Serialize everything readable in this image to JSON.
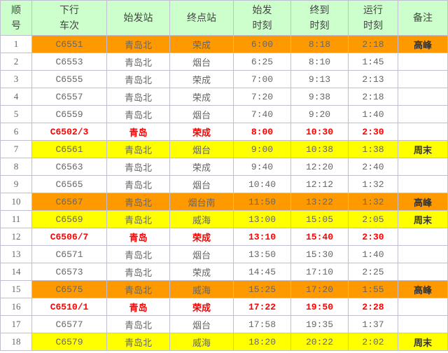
{
  "colors": {
    "header": "#ccffcc",
    "peak": "#ff9900",
    "weekend": "#ffff00",
    "special_text": "#ff0000"
  },
  "headers": [
    "顺\n号",
    "下行\n车次",
    "始发站",
    "终点站",
    "始发\n时刻",
    "终到\n时刻",
    "运行\n时刻",
    "备注"
  ],
  "rows": [
    {
      "type": "peak",
      "cells": [
        "1",
        "C6551",
        "青岛北",
        "荣成",
        "6:00",
        "8:18",
        "2:18",
        "高峰"
      ]
    },
    {
      "type": "normal",
      "cells": [
        "2",
        "C6553",
        "青岛北",
        "烟台",
        "6:25",
        "8:10",
        "1:45",
        ""
      ]
    },
    {
      "type": "normal",
      "cells": [
        "3",
        "C6555",
        "青岛北",
        "荣成",
        "7:00",
        "9:13",
        "2:13",
        ""
      ]
    },
    {
      "type": "normal",
      "cells": [
        "4",
        "C6557",
        "青岛北",
        "荣成",
        "7:20",
        "9:38",
        "2:18",
        ""
      ]
    },
    {
      "type": "normal",
      "cells": [
        "5",
        "C6559",
        "青岛北",
        "烟台",
        "7:40",
        "9:20",
        "1:40",
        ""
      ]
    },
    {
      "type": "red",
      "cells": [
        "6",
        "C6502/3",
        "青岛",
        "荣成",
        "8:00",
        "10:30",
        "2:30",
        ""
      ]
    },
    {
      "type": "weekend",
      "cells": [
        "7",
        "C6561",
        "青岛北",
        "烟台",
        "9:00",
        "10:38",
        "1:38",
        "周末"
      ]
    },
    {
      "type": "normal",
      "cells": [
        "8",
        "C6563",
        "青岛北",
        "荣成",
        "9:40",
        "12:20",
        "2:40",
        ""
      ]
    },
    {
      "type": "normal",
      "cells": [
        "9",
        "C6565",
        "青岛北",
        "烟台",
        "10:40",
        "12:12",
        "1:32",
        ""
      ]
    },
    {
      "type": "peak",
      "cells": [
        "10",
        "C6567",
        "青岛北",
        "烟台南",
        "11:50",
        "13:22",
        "1:32",
        "高峰"
      ]
    },
    {
      "type": "weekend",
      "cells": [
        "11",
        "C6569",
        "青岛北",
        "威海",
        "13:00",
        "15:05",
        "2:05",
        "周末"
      ]
    },
    {
      "type": "red",
      "cells": [
        "12",
        "C6506/7",
        "青岛",
        "荣成",
        "13:10",
        "15:40",
        "2:30",
        ""
      ]
    },
    {
      "type": "normal",
      "cells": [
        "13",
        "C6571",
        "青岛北",
        "烟台",
        "13:50",
        "15:30",
        "1:40",
        ""
      ]
    },
    {
      "type": "normal",
      "cells": [
        "14",
        "C6573",
        "青岛北",
        "荣成",
        "14:45",
        "17:10",
        "2:25",
        ""
      ]
    },
    {
      "type": "peak",
      "cells": [
        "15",
        "C6575",
        "青岛北",
        "威海",
        "15:25",
        "17:20",
        "1:55",
        "高峰"
      ]
    },
    {
      "type": "red",
      "cells": [
        "16",
        "C6510/1",
        "青岛",
        "荣成",
        "17:22",
        "19:50",
        "2:28",
        ""
      ]
    },
    {
      "type": "normal",
      "cells": [
        "17",
        "C6577",
        "青岛北",
        "烟台",
        "17:58",
        "19:35",
        "1:37",
        ""
      ]
    },
    {
      "type": "weekend",
      "cells": [
        "18",
        "C6579",
        "青岛北",
        "威海",
        "18:20",
        "20:22",
        "2:02",
        "周末"
      ]
    }
  ]
}
